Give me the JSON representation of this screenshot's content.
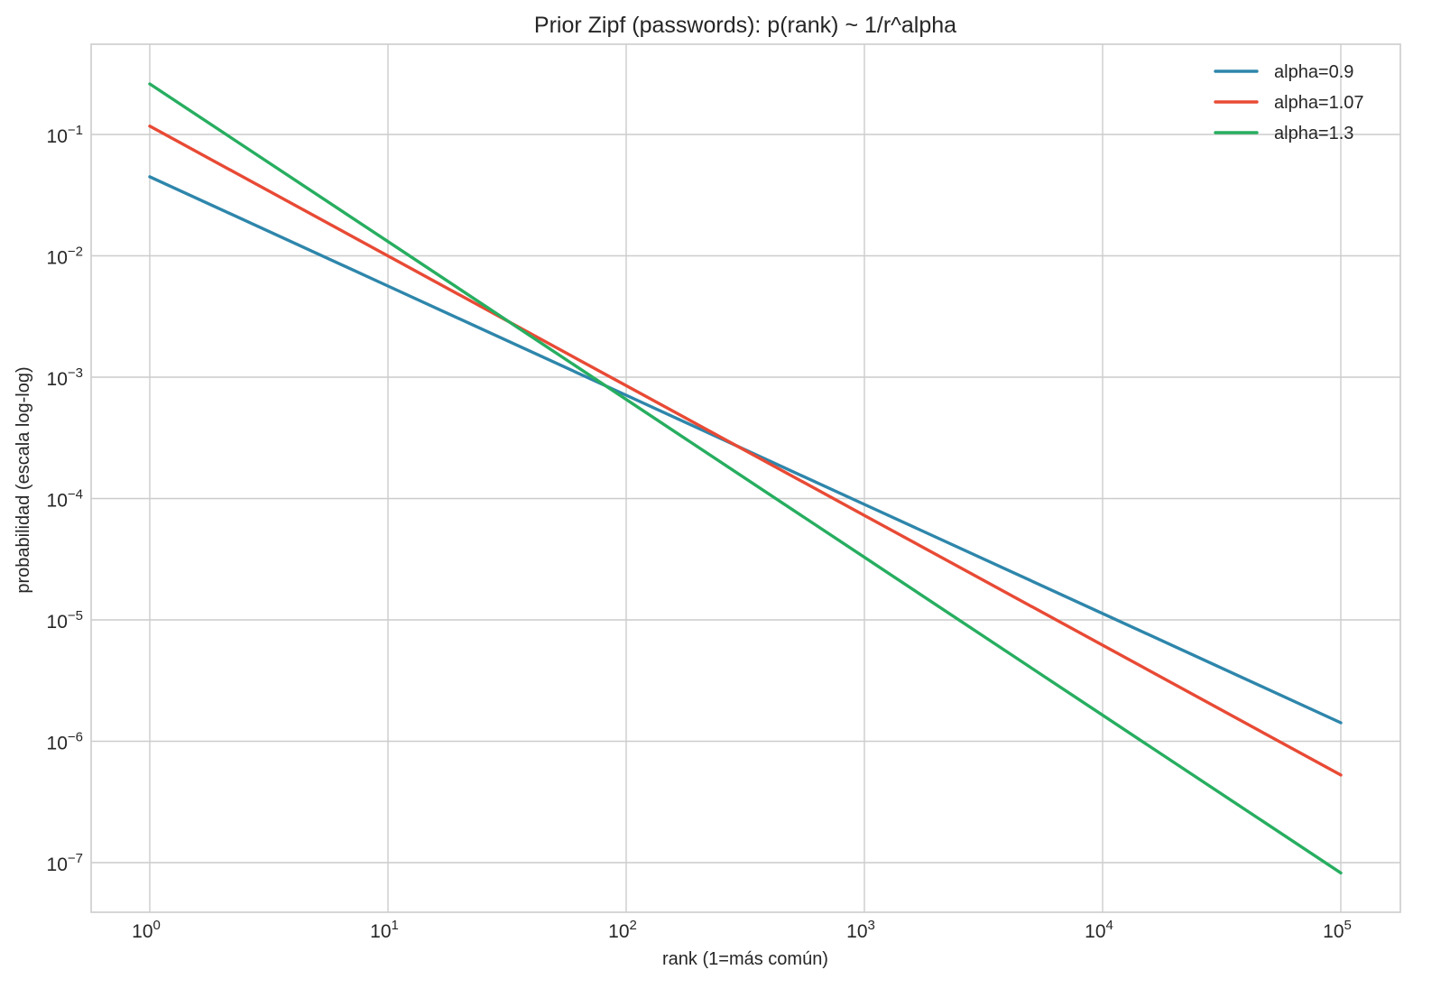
{
  "chart_data": {
    "type": "line",
    "title": "Prior Zipf (passwords): p(rank) ~ 1/r^alpha",
    "xlabel": "rank (1=más común)",
    "ylabel": "probabilidad (escala log-log)",
    "xscale": "log",
    "yscale": "log",
    "xlim": [
      0.56,
      180000
    ],
    "ylim": [
      4.5e-08,
      0.55
    ],
    "grid": true,
    "legend_position": "upper right",
    "x_ticks": [
      {
        "value": 1,
        "base": "10",
        "exp": "0"
      },
      {
        "value": 10,
        "base": "10",
        "exp": "1"
      },
      {
        "value": 100,
        "base": "10",
        "exp": "2"
      },
      {
        "value": 1000,
        "base": "10",
        "exp": "3"
      },
      {
        "value": 10000,
        "base": "10",
        "exp": "4"
      },
      {
        "value": 100000,
        "base": "10",
        "exp": "5"
      }
    ],
    "y_ticks": [
      {
        "value": 0.1,
        "base": "10",
        "exp": "−1"
      },
      {
        "value": 0.01,
        "base": "10",
        "exp": "−2"
      },
      {
        "value": 0.001,
        "base": "10",
        "exp": "−3"
      },
      {
        "value": 0.0001,
        "base": "10",
        "exp": "−4"
      },
      {
        "value": 1e-05,
        "base": "10",
        "exp": "−5"
      },
      {
        "value": 1e-06,
        "base": "10",
        "exp": "−6"
      },
      {
        "value": 1e-07,
        "base": "10",
        "exp": "−7"
      }
    ],
    "x": [
      1,
      10,
      100,
      1000,
      10000,
      100000
    ],
    "series": [
      {
        "name": "alpha=0.9",
        "color": "#2e86ab",
        "alpha": 0.9,
        "values": [
          0.0448,
          0.00564,
          0.00071,
          8.94e-05,
          1.13e-05,
          1.42e-06
        ]
      },
      {
        "name": "alpha=1.07",
        "color": "#e84a35",
        "alpha": 1.07,
        "values": [
          0.117,
          0.00999,
          0.000851,
          7.26e-05,
          6.19e-06,
          5.27e-07
        ]
      },
      {
        "name": "alpha=1.3",
        "color": "#27ae60",
        "alpha": 1.3,
        "values": [
          0.261,
          0.0131,
          0.000655,
          3.28e-05,
          1.64e-06,
          8.23e-08
        ]
      }
    ]
  }
}
